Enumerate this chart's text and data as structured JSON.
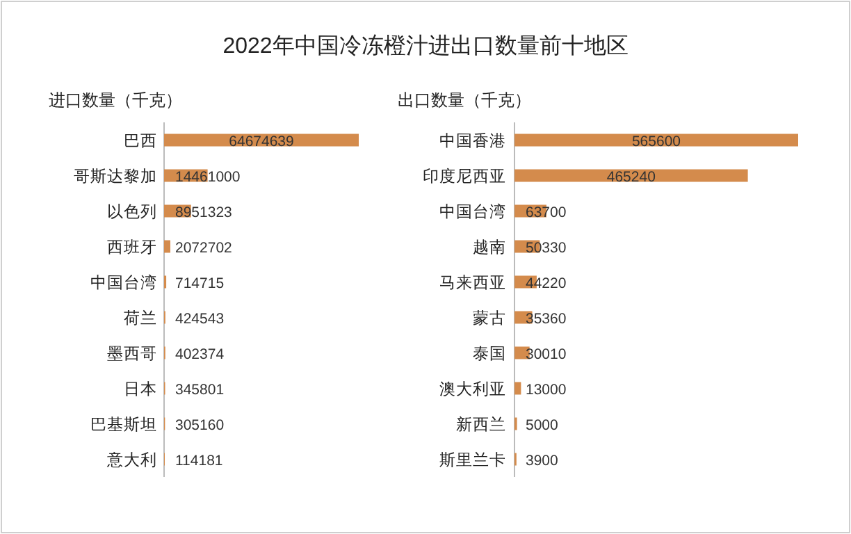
{
  "chart_data": [
    {
      "type": "bar",
      "orientation": "horizontal",
      "title": "2022年中国冷冻橙汁进出口数量前十地区",
      "subtitle": "进口数量（千克）",
      "data_labels": true,
      "color": "#d48b4c",
      "categories": [
        "巴西",
        "哥斯达黎加",
        "以色列",
        "西班牙",
        "中国台湾",
        "荷兰",
        "墨西哥",
        "日本",
        "巴基斯坦",
        "意大利"
      ],
      "values": [
        64674639,
        14461000,
        8951323,
        2072702,
        714715,
        424543,
        402374,
        345801,
        305160,
        114181
      ]
    },
    {
      "type": "bar",
      "orientation": "horizontal",
      "subtitle": "出口数量（千克）",
      "data_labels": true,
      "color": "#d48b4c",
      "categories": [
        "中国香港",
        "印度尼西亚",
        "中国台湾",
        "越南",
        "马来西亚",
        "蒙古",
        "泰国",
        "澳大利亚",
        "新西兰",
        "斯里兰卡"
      ],
      "values": [
        565600,
        465240,
        63700,
        50330,
        44220,
        35360,
        30010,
        13000,
        5000,
        3900
      ]
    }
  ]
}
